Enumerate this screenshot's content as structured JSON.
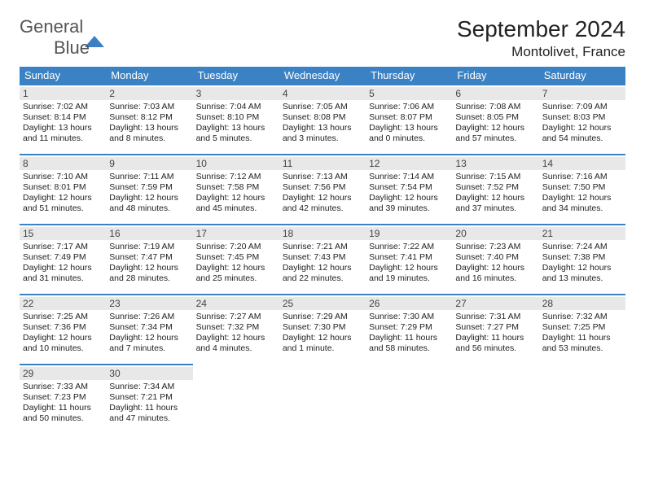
{
  "brand": {
    "part1": "General",
    "part2": "Blue"
  },
  "title": "September 2024",
  "location": "Montolivet, France",
  "colors": {
    "accent": "#3b82c4",
    "day_bg": "#e8e8e8",
    "text": "#222222",
    "bg": "#ffffff"
  },
  "weekdays": [
    "Sunday",
    "Monday",
    "Tuesday",
    "Wednesday",
    "Thursday",
    "Friday",
    "Saturday"
  ],
  "weeks": [
    [
      {
        "day": "1",
        "sunrise": "Sunrise: 7:02 AM",
        "sunset": "Sunset: 8:14 PM",
        "daylight": "Daylight: 13 hours and 11 minutes."
      },
      {
        "day": "2",
        "sunrise": "Sunrise: 7:03 AM",
        "sunset": "Sunset: 8:12 PM",
        "daylight": "Daylight: 13 hours and 8 minutes."
      },
      {
        "day": "3",
        "sunrise": "Sunrise: 7:04 AM",
        "sunset": "Sunset: 8:10 PM",
        "daylight": "Daylight: 13 hours and 5 minutes."
      },
      {
        "day": "4",
        "sunrise": "Sunrise: 7:05 AM",
        "sunset": "Sunset: 8:08 PM",
        "daylight": "Daylight: 13 hours and 3 minutes."
      },
      {
        "day": "5",
        "sunrise": "Sunrise: 7:06 AM",
        "sunset": "Sunset: 8:07 PM",
        "daylight": "Daylight: 13 hours and 0 minutes."
      },
      {
        "day": "6",
        "sunrise": "Sunrise: 7:08 AM",
        "sunset": "Sunset: 8:05 PM",
        "daylight": "Daylight: 12 hours and 57 minutes."
      },
      {
        "day": "7",
        "sunrise": "Sunrise: 7:09 AM",
        "sunset": "Sunset: 8:03 PM",
        "daylight": "Daylight: 12 hours and 54 minutes."
      }
    ],
    [
      {
        "day": "8",
        "sunrise": "Sunrise: 7:10 AM",
        "sunset": "Sunset: 8:01 PM",
        "daylight": "Daylight: 12 hours and 51 minutes."
      },
      {
        "day": "9",
        "sunrise": "Sunrise: 7:11 AM",
        "sunset": "Sunset: 7:59 PM",
        "daylight": "Daylight: 12 hours and 48 minutes."
      },
      {
        "day": "10",
        "sunrise": "Sunrise: 7:12 AM",
        "sunset": "Sunset: 7:58 PM",
        "daylight": "Daylight: 12 hours and 45 minutes."
      },
      {
        "day": "11",
        "sunrise": "Sunrise: 7:13 AM",
        "sunset": "Sunset: 7:56 PM",
        "daylight": "Daylight: 12 hours and 42 minutes."
      },
      {
        "day": "12",
        "sunrise": "Sunrise: 7:14 AM",
        "sunset": "Sunset: 7:54 PM",
        "daylight": "Daylight: 12 hours and 39 minutes."
      },
      {
        "day": "13",
        "sunrise": "Sunrise: 7:15 AM",
        "sunset": "Sunset: 7:52 PM",
        "daylight": "Daylight: 12 hours and 37 minutes."
      },
      {
        "day": "14",
        "sunrise": "Sunrise: 7:16 AM",
        "sunset": "Sunset: 7:50 PM",
        "daylight": "Daylight: 12 hours and 34 minutes."
      }
    ],
    [
      {
        "day": "15",
        "sunrise": "Sunrise: 7:17 AM",
        "sunset": "Sunset: 7:49 PM",
        "daylight": "Daylight: 12 hours and 31 minutes."
      },
      {
        "day": "16",
        "sunrise": "Sunrise: 7:19 AM",
        "sunset": "Sunset: 7:47 PM",
        "daylight": "Daylight: 12 hours and 28 minutes."
      },
      {
        "day": "17",
        "sunrise": "Sunrise: 7:20 AM",
        "sunset": "Sunset: 7:45 PM",
        "daylight": "Daylight: 12 hours and 25 minutes."
      },
      {
        "day": "18",
        "sunrise": "Sunrise: 7:21 AM",
        "sunset": "Sunset: 7:43 PM",
        "daylight": "Daylight: 12 hours and 22 minutes."
      },
      {
        "day": "19",
        "sunrise": "Sunrise: 7:22 AM",
        "sunset": "Sunset: 7:41 PM",
        "daylight": "Daylight: 12 hours and 19 minutes."
      },
      {
        "day": "20",
        "sunrise": "Sunrise: 7:23 AM",
        "sunset": "Sunset: 7:40 PM",
        "daylight": "Daylight: 12 hours and 16 minutes."
      },
      {
        "day": "21",
        "sunrise": "Sunrise: 7:24 AM",
        "sunset": "Sunset: 7:38 PM",
        "daylight": "Daylight: 12 hours and 13 minutes."
      }
    ],
    [
      {
        "day": "22",
        "sunrise": "Sunrise: 7:25 AM",
        "sunset": "Sunset: 7:36 PM",
        "daylight": "Daylight: 12 hours and 10 minutes."
      },
      {
        "day": "23",
        "sunrise": "Sunrise: 7:26 AM",
        "sunset": "Sunset: 7:34 PM",
        "daylight": "Daylight: 12 hours and 7 minutes."
      },
      {
        "day": "24",
        "sunrise": "Sunrise: 7:27 AM",
        "sunset": "Sunset: 7:32 PM",
        "daylight": "Daylight: 12 hours and 4 minutes."
      },
      {
        "day": "25",
        "sunrise": "Sunrise: 7:29 AM",
        "sunset": "Sunset: 7:30 PM",
        "daylight": "Daylight: 12 hours and 1 minute."
      },
      {
        "day": "26",
        "sunrise": "Sunrise: 7:30 AM",
        "sunset": "Sunset: 7:29 PM",
        "daylight": "Daylight: 11 hours and 58 minutes."
      },
      {
        "day": "27",
        "sunrise": "Sunrise: 7:31 AM",
        "sunset": "Sunset: 7:27 PM",
        "daylight": "Daylight: 11 hours and 56 minutes."
      },
      {
        "day": "28",
        "sunrise": "Sunrise: 7:32 AM",
        "sunset": "Sunset: 7:25 PM",
        "daylight": "Daylight: 11 hours and 53 minutes."
      }
    ],
    [
      {
        "day": "29",
        "sunrise": "Sunrise: 7:33 AM",
        "sunset": "Sunset: 7:23 PM",
        "daylight": "Daylight: 11 hours and 50 minutes."
      },
      {
        "day": "30",
        "sunrise": "Sunrise: 7:34 AM",
        "sunset": "Sunset: 7:21 PM",
        "daylight": "Daylight: 11 hours and 47 minutes."
      },
      null,
      null,
      null,
      null,
      null
    ]
  ]
}
